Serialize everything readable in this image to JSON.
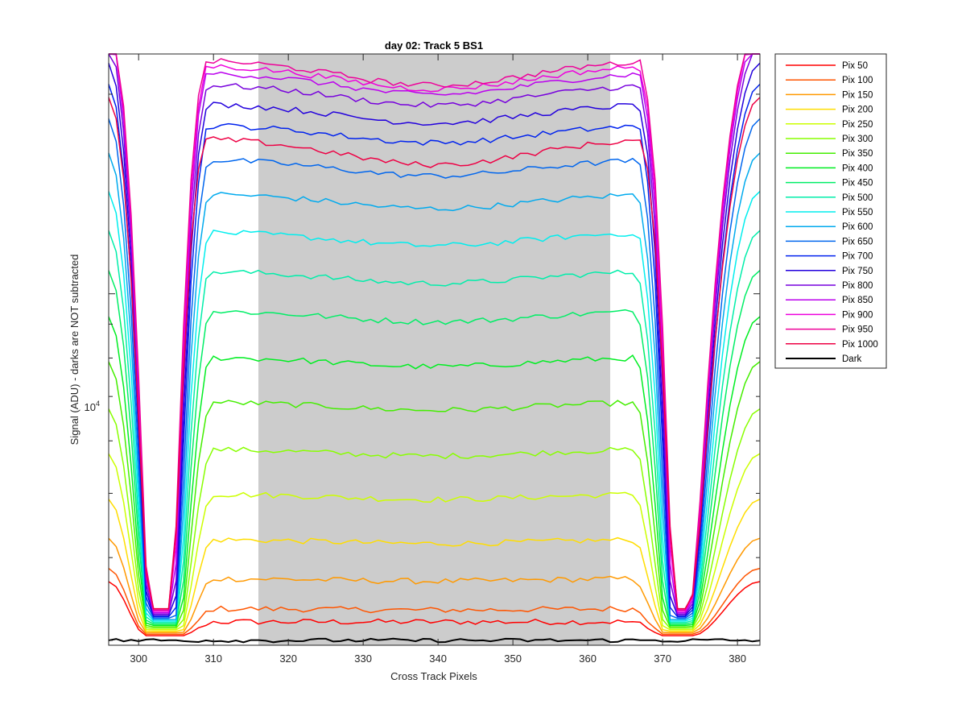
{
  "chart_data": {
    "type": "line",
    "title": "day 02: Track 5  BS1",
    "xlabel": "Cross Track Pixels",
    "ylabel": "Signal (ADU) - darks are NOT subtracted",
    "x_ticks": [
      300,
      310,
      320,
      330,
      340,
      350,
      360,
      370,
      380
    ],
    "x_tick_labels": [
      "300",
      "310",
      "320",
      "330",
      "340",
      "350",
      "360",
      "370",
      "380"
    ],
    "y_tick_label": {
      "base": "10",
      "exponent": "4",
      "value": 10000
    },
    "xlim": [
      296,
      383
    ],
    "ylim": [
      2950,
      23000
    ],
    "y_scale": "log",
    "shaded_region": {
      "x": [
        316,
        363
      ],
      "color": "#cccccc"
    },
    "grid": false,
    "legend_position": "outside-right",
    "series": [
      {
        "name": "Pix 50",
        "color": "#ff0000",
        "plateau": 3200
      },
      {
        "name": "Pix 100",
        "color": "#ff5500",
        "plateau": 3350
      },
      {
        "name": "Pix 150",
        "color": "#ff9900",
        "plateau": 3720
      },
      {
        "name": "Pix 200",
        "color": "#ffdd00",
        "plateau": 4260
      },
      {
        "name": "Pix 250",
        "color": "#ccff00",
        "plateau": 4990
      },
      {
        "name": "Pix 300",
        "color": "#88ff00",
        "plateau": 5830
      },
      {
        "name": "Pix 350",
        "color": "#44ee00",
        "plateau": 6870
      },
      {
        "name": "Pix 400",
        "color": "#00ee22",
        "plateau": 8030
      },
      {
        "name": "Pix 450",
        "color": "#00ee66",
        "plateau": 9430
      },
      {
        "name": "Pix 500",
        "color": "#00eeaa",
        "plateau": 10830
      },
      {
        "name": "Pix 550",
        "color": "#00eeee",
        "plateau": 12410
      },
      {
        "name": "Pix 600",
        "color": "#00aaee",
        "plateau": 14180
      },
      {
        "name": "Pix 650",
        "color": "#0066ee",
        "plateau": 15970
      },
      {
        "name": "Pix 700",
        "color": "#0022ee",
        "plateau": 18010
      },
      {
        "name": "Pix 750",
        "color": "#2200dd",
        "plateau": 19380
      },
      {
        "name": "Pix 800",
        "color": "#7700dd",
        "plateau": 20720
      },
      {
        "name": "Pix 850",
        "color": "#bb00ee",
        "plateau": 21610
      },
      {
        "name": "Pix 900",
        "color": "#ee00dd",
        "plateau": 22150
      },
      {
        "name": "Pix 950",
        "color": "#ee0099",
        "plateau": 22560
      },
      {
        "name": "Pix 1000",
        "color": "#ee0044",
        "plateau": 17200
      },
      {
        "name": "Dark",
        "color": "#000000",
        "plateau": 3000
      }
    ]
  }
}
